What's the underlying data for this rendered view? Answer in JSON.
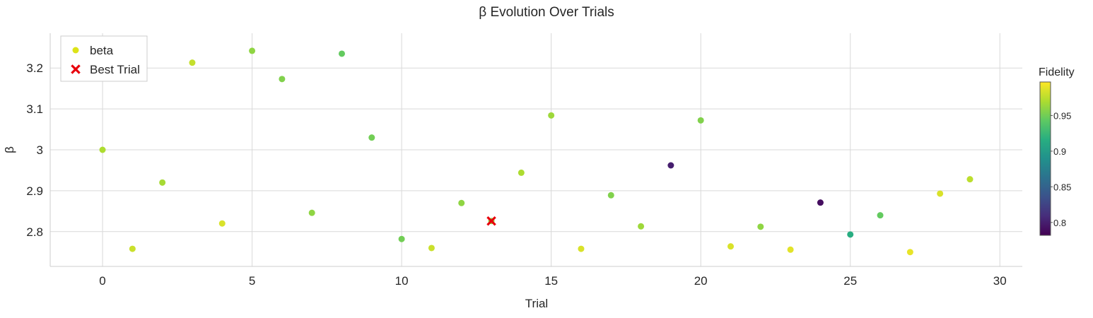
{
  "chart_data": {
    "type": "scatter",
    "title": "β Evolution Over Trials",
    "xlabel": "Trial",
    "ylabel": "β",
    "xlim": [
      -1.75,
      30.75
    ],
    "ylim": [
      2.715,
      3.285
    ],
    "xticks": [
      0,
      5,
      10,
      15,
      20,
      25,
      30
    ],
    "xtick_labels": [
      "0",
      "5",
      "10",
      "15",
      "20",
      "25",
      "30"
    ],
    "yticks": [
      2.8,
      2.9,
      3.0,
      3.1,
      3.2
    ],
    "ytick_labels": [
      "2.8",
      "2.9",
      "3",
      "3.1",
      "3.2"
    ],
    "grid": true,
    "legend_position": "top-left",
    "legend": [
      {
        "label": "beta",
        "marker": "circle",
        "color": "#dde318"
      },
      {
        "label": "Best Trial",
        "marker": "x",
        "color": "#e8000b"
      }
    ],
    "series": [
      {
        "name": "beta",
        "x": [
          0,
          1,
          2,
          3,
          4,
          5,
          6,
          7,
          8,
          9,
          10,
          11,
          12,
          13,
          14,
          15,
          16,
          17,
          18,
          19,
          20,
          21,
          22,
          23,
          24,
          25,
          26,
          27,
          28,
          29
        ],
        "y": [
          3.0,
          2.758,
          2.92,
          3.213,
          2.82,
          3.242,
          3.173,
          2.846,
          3.235,
          3.03,
          2.782,
          2.76,
          2.87,
          2.826,
          2.944,
          3.084,
          2.758,
          2.889,
          2.813,
          2.962,
          3.072,
          2.764,
          2.812,
          2.756,
          2.871,
          2.793,
          2.84,
          2.75,
          2.893,
          2.928
        ],
        "fidelity": [
          0.97,
          0.98,
          0.968,
          0.978,
          0.985,
          0.96,
          0.955,
          0.96,
          0.945,
          0.95,
          0.95,
          0.98,
          0.96,
          0.96,
          0.97,
          0.965,
          0.985,
          0.955,
          0.965,
          0.8,
          0.955,
          0.985,
          0.96,
          0.988,
          0.79,
          0.915,
          0.945,
          0.99,
          0.985,
          0.975
        ]
      },
      {
        "name": "Best Trial",
        "x": [
          13
        ],
        "y": [
          2.826
        ]
      }
    ],
    "colorbar": {
      "label": "Fidelity",
      "colormap": "viridis",
      "range": [
        0.782,
        0.997
      ],
      "ticks": [
        0.8,
        0.85,
        0.9,
        0.95
      ],
      "tick_labels": [
        "0.8",
        "0.85",
        "0.9",
        "0.95"
      ]
    }
  }
}
